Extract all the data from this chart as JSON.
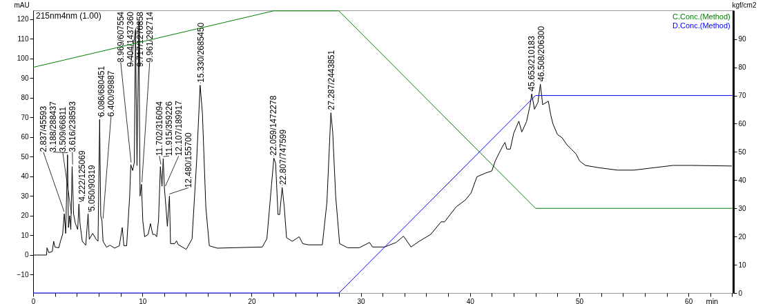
{
  "chart_data": {
    "type": "line",
    "xlabel": "min",
    "ylabel": "mAU",
    "y2label": "kgf/cm2",
    "xlim": [
      0,
      64.1
    ],
    "ylim": [
      -19.3,
      124.5
    ],
    "y2lim": [
      0,
      100.2
    ],
    "xticks": [
      0,
      {
        "value": 2,
        "label": null
      },
      {
        "value": 4,
        "label": null
      },
      {
        "value": 6,
        "label": null
      },
      {
        "value": 8,
        "label": null
      },
      10,
      {
        "value": 12,
        "label": null
      },
      {
        "value": 14,
        "label": null
      },
      {
        "value": 16,
        "label": null
      },
      {
        "value": 18,
        "label": null
      },
      20,
      {
        "value": 22,
        "label": null
      },
      {
        "value": 24,
        "label": null
      },
      {
        "value": 26,
        "label": null
      },
      {
        "value": 28,
        "label": null
      },
      30,
      {
        "value": 32,
        "label": null
      },
      {
        "value": 34,
        "label": null
      },
      {
        "value": 36,
        "label": null
      },
      {
        "value": 38,
        "label": null
      },
      40,
      {
        "value": 42,
        "label": null
      },
      {
        "value": 44,
        "label": null
      },
      {
        "value": 46,
        "label": null
      },
      {
        "value": 48,
        "label": null
      },
      50,
      {
        "value": 52,
        "label": null
      },
      {
        "value": 54,
        "label": null
      },
      {
        "value": 56,
        "label": null
      },
      {
        "value": 58,
        "label": null
      },
      60,
      {
        "value": 62,
        "label": null
      },
      {
        "value": 64,
        "label": null
      }
    ],
    "yticks": [
      -10,
      0,
      10,
      20,
      30,
      40,
      50,
      60,
      70,
      80,
      90,
      100,
      110,
      120
    ],
    "y2ticks": [
      0,
      10,
      20,
      30,
      40,
      50,
      60,
      70,
      80,
      90
    ],
    "legend": "top right",
    "series": [
      {
        "color": "#000000",
        "x": [
          0,
          1.23,
          1.27,
          1.44,
          1.75,
          1.88,
          2.0,
          2.35,
          2.5,
          2.7,
          2.85,
          2.98,
          3.15,
          3.23,
          3.34,
          3.45,
          3.57,
          3.7,
          3.87,
          4.08,
          4.19,
          4.29,
          4.5,
          4.82,
          5.03,
          5.14,
          5.45,
          5.77,
          5.94,
          6.09,
          6.19,
          6.3,
          6.4,
          6.72,
          7.04,
          7.46,
          7.89,
          8.16,
          8.31,
          8.56,
          8.84,
          8.94,
          9.11,
          9.26,
          9.37,
          9.51,
          9.68,
          9.79,
          9.92,
          10.04,
          10.21,
          10.53,
          10.74,
          10.95,
          11.16,
          11.31,
          11.48,
          11.65,
          11.8,
          11.91,
          12.02,
          12.16,
          12.29,
          12.48,
          12.58,
          12.96,
          13.13,
          13.28,
          14.02,
          14.55,
          14.97,
          15.29,
          15.5,
          15.81,
          16.13,
          16.87,
          20.98,
          21.4,
          21.83,
          22.04,
          22.2,
          22.42,
          22.57,
          22.8,
          22.99,
          23.2,
          23.73,
          24.36,
          24.68,
          25.2,
          26.48,
          26.9,
          27.26,
          27.43,
          27.7,
          28.06,
          28.8,
          29.85,
          30.8,
          31.08,
          32.18,
          33.23,
          33.91,
          34.6,
          35.35,
          36.4,
          37.35,
          37.67,
          38.73,
          39.57,
          40.1,
          40.63,
          41.37,
          42.0,
          42.32,
          42.95,
          43.2,
          43.37,
          43.69,
          44.0,
          44.47,
          44.74,
          45.17,
          45.49,
          45.65,
          45.9,
          46.22,
          46.44,
          46.65,
          47.17,
          47.39,
          47.6,
          48.0,
          48.44,
          48.87,
          49.29,
          49.71,
          50.03,
          50.56,
          51.83,
          53.51,
          55.0,
          57.1,
          58.58,
          60.27,
          63.97
        ],
        "values": [
          0,
          0,
          3.7,
          1.2,
          1.8,
          7,
          4,
          3.7,
          7,
          10.5,
          21,
          11,
          51,
          14,
          20,
          13,
          45,
          21,
          16,
          13,
          26,
          16,
          7,
          5,
          21,
          8,
          11,
          8,
          7,
          69,
          20,
          17.5,
          7,
          4,
          5,
          3.5,
          4.7,
          14,
          4.7,
          4.7,
          30,
          46,
          43,
          47,
          114.5,
          45.5,
          118.5,
          30,
          36,
          17.5,
          9.3,
          10.5,
          16,
          10.5,
          10.5,
          9.3,
          17.5,
          45,
          35,
          49,
          34,
          24.5,
          14.6,
          30,
          5.8,
          5.8,
          7.2,
          5.3,
          2.9,
          8.2,
          48,
          86.4,
          72,
          24.5,
          4.7,
          3.5,
          4.1,
          8.2,
          36,
          49.3,
          46.7,
          20.6,
          20.6,
          34.4,
          24.5,
          8.8,
          7,
          9.3,
          5.8,
          5.2,
          5.2,
          27,
          72.4,
          62.4,
          30,
          5.8,
          3.7,
          3.7,
          6.4,
          4.1,
          4.1,
          6.4,
          9.6,
          4.1,
          7,
          10.5,
          16.9,
          16.9,
          24.5,
          28,
          31.6,
          39.8,
          41.6,
          42.8,
          48,
          55,
          57.3,
          53.9,
          53.9,
          62,
          68.1,
          62.6,
          67.8,
          76,
          82,
          74.2,
          77.7,
          87,
          76.5,
          78.3,
          71.3,
          66.6,
          61.4,
          59.6,
          56.1,
          53.8,
          51.4,
          47.9,
          45.6,
          44.4,
          43.2,
          43.2,
          44.6,
          45.6,
          45.6,
          45.3
        ]
      },
      {
        "name": "C.Conc.(Method)",
        "color": "#008000",
        "axis": "y2",
        "x": [
          0,
          22,
          28,
          46,
          64.1
        ],
        "values": [
          80,
          100,
          100,
          30,
          30
        ]
      },
      {
        "name": "D.Conc.(Method)",
        "color": "#0000ff",
        "axis": "y2",
        "x": [
          0,
          28,
          46,
          64.1
        ],
        "values": [
          0,
          0,
          70,
          70
        ]
      }
    ],
    "annotations": [
      "215nm4nm (1.00)",
      {
        "text": "2.837/45593",
        "x": 2.837,
        "y": 21
      },
      {
        "text": "3.188/288437",
        "x": 3.188,
        "y": 51
      },
      {
        "text": "3.509/66811",
        "x": 3.509,
        "y": 20
      },
      {
        "text": "3.616/238593",
        "x": 3.616,
        "y": 45
      },
      {
        "text": "4.222/125069",
        "x": 4.222,
        "y": 26
      },
      {
        "text": "5.050/90319",
        "x": 5.05,
        "y": 21
      },
      {
        "text": "6.086/680451",
        "x": 6.086,
        "y": 69
      },
      {
        "text": "6.400/99887",
        "x": 6.4,
        "y": 17.5
      },
      {
        "text": "8.969/607554",
        "x": 8.969,
        "y": 46
      },
      {
        "text": "9.404/1437360",
        "x": 9.404,
        "y": 114.5
      },
      {
        "text": "9.717/1276858",
        "x": 9.717,
        "y": 118.5
      },
      {
        "text": "9.961/292714",
        "x": 9.961,
        "y": 36
      },
      {
        "text": "11.702/316094",
        "x": 11.702,
        "y": 45
      },
      {
        "text": "11.915/359226",
        "x": 11.915,
        "y": 49
      },
      {
        "text": "12.107/189917",
        "x": 12.107,
        "y": 34
      },
      {
        "text": "12.480/155700",
        "x": 12.48,
        "y": 30
      },
      {
        "text": "15.330/2685450",
        "x": 15.33,
        "y": 86.4
      },
      {
        "text": "22.059/1472278",
        "x": 22.059,
        "y": 49.3
      },
      {
        "text": "22.807/747599",
        "x": 22.807,
        "y": 34.4
      },
      {
        "text": "27.287/2443851",
        "x": 27.287,
        "y": 72.4
      },
      {
        "text": "45.653/210183",
        "x": 45.653,
        "y": 82
      },
      {
        "text": "46.508/206300",
        "x": 46.508,
        "y": 87
      }
    ]
  }
}
